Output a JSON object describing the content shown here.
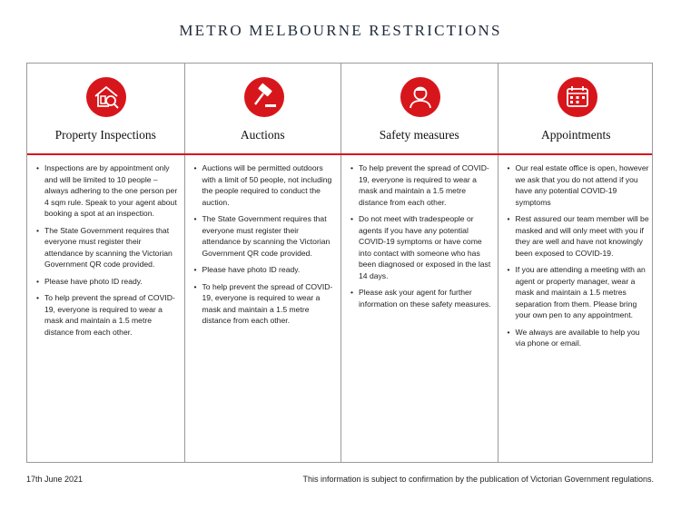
{
  "title": "METRO MELBOURNE RESTRICTIONS",
  "columns": [
    {
      "heading": "Property Inspections",
      "bullets": [
        "Inspections are by appointment only and will be limited to 10 people – always adhering to the one person per 4 sqm rule. Speak to your agent about booking a spot at an inspection.",
        "The State Government requires that everyone must register their attendance by scanning the Victorian Government  QR code provided.",
        "Please have photo ID ready.",
        "To help prevent the spread of COVID-19, everyone is required to wear a mask and maintain a 1.5 metre distance from each other."
      ]
    },
    {
      "heading": "Auctions",
      "bullets": [
        "Auctions will be permitted outdoors with a limit of 50 people, not including the people required to conduct the auction.",
        "The State Government requires that everyone must register their attendance by scanning the Victorian Government  QR code provided.",
        "Please have photo ID ready.",
        "To help prevent the spread of COVID-19, everyone is required to wear a mask and maintain a 1.5 metre distance from each other."
      ]
    },
    {
      "heading": "Safety measures",
      "bullets": [
        "To help prevent the spread of COVID-19, everyone is required to wear a mask and maintain a 1.5 metre distance from each other.",
        "Do not meet with tradespeople or agents if you have any potential COVID-19 symptoms or have come into contact with someone who has been diagnosed or exposed in the last 14 days.",
        "Please ask your agent for further information on these safety measures."
      ]
    },
    {
      "heading": "Appointments",
      "bullets": [
        "Our real estate office is open, however we ask that you do not attend if you have any potential COVID-19 symptoms",
        "Rest assured our team member will be masked and will only meet with you if they are well and have not  knowingly been exposed to COVID-19.",
        "If you are attending a meeting with an agent or property manager, wear a mask and maintain a 1.5 metres separation from them. Please bring your own pen to any appointment.",
        "We always are available to help you via phone or email."
      ]
    }
  ],
  "footer": {
    "date": "17th June 2021",
    "note": "This information is subject to confirmation by the publication of Victorian Government regulations."
  }
}
